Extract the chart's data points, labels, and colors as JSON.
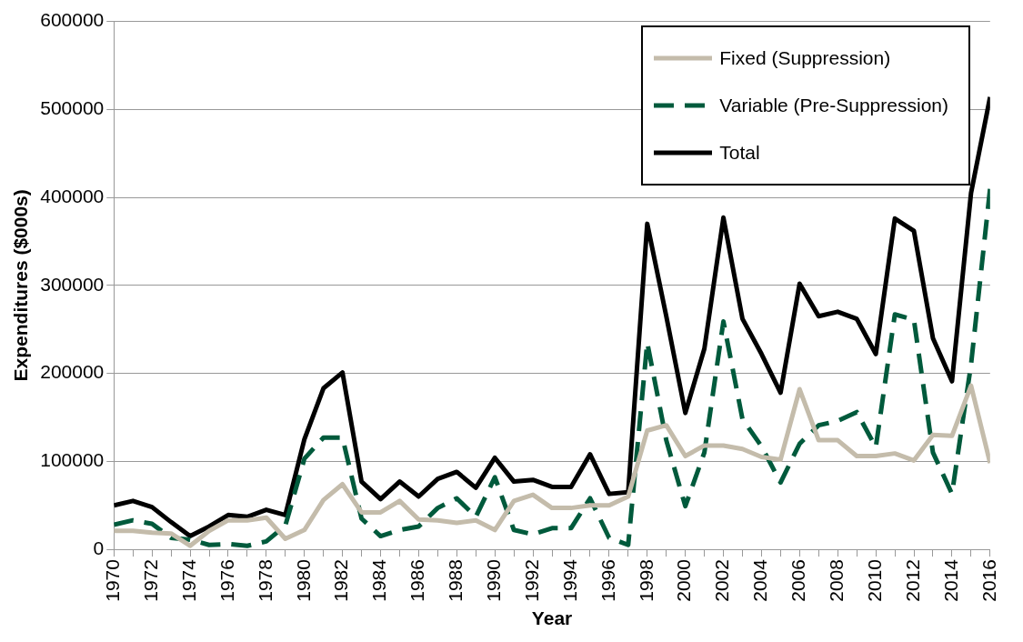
{
  "chart_data": {
    "type": "line",
    "xlabel": "Year",
    "ylabel": "Expenditures ($000s)",
    "x": [
      1970,
      1971,
      1972,
      1973,
      1974,
      1975,
      1976,
      1977,
      1978,
      1979,
      1980,
      1981,
      1982,
      1983,
      1984,
      1985,
      1986,
      1987,
      1988,
      1989,
      1990,
      1991,
      1992,
      1993,
      1994,
      1995,
      1996,
      1997,
      1998,
      1999,
      2000,
      2001,
      2002,
      2003,
      2004,
      2005,
      2006,
      2007,
      2008,
      2009,
      2010,
      2011,
      2012,
      2013,
      2014,
      2015,
      2016
    ],
    "series": [
      {
        "name": "Fixed (Suppression)",
        "color": "#c4bcab",
        "line_style": "solid",
        "values": [
          21000,
          21000,
          19000,
          18000,
          4000,
          21000,
          33000,
          33000,
          36000,
          12000,
          22000,
          56000,
          74000,
          42000,
          42000,
          55000,
          34000,
          33000,
          30000,
          33000,
          22000,
          55000,
          62000,
          47000,
          47000,
          50000,
          50000,
          60000,
          135000,
          141000,
          106000,
          118000,
          118000,
          114000,
          105000,
          102000,
          182000,
          124000,
          124000,
          106000,
          106000,
          109000,
          101000,
          130000,
          129000,
          186000,
          98000
        ]
      },
      {
        "name": "Variable (Pre-Suppression)",
        "color": "#005a3c",
        "line_style": "dashed",
        "values": [
          28000,
          33000,
          29000,
          13000,
          11000,
          5000,
          6000,
          4000,
          9000,
          27000,
          103000,
          127000,
          127000,
          35000,
          15000,
          22000,
          26000,
          47000,
          58000,
          37000,
          82000,
          22000,
          17000,
          24000,
          24000,
          58000,
          13000,
          5000,
          235000,
          124000,
          49000,
          110000,
          259000,
          148000,
          117000,
          76000,
          120000,
          141000,
          146000,
          156000,
          116000,
          267000,
          261000,
          110000,
          63000,
          210000,
          410000
        ]
      },
      {
        "name": "Total",
        "color": "#000000",
        "line_style": "solid",
        "values": [
          50000,
          55000,
          48000,
          31000,
          15000,
          26000,
          39000,
          37000,
          45000,
          39000,
          125000,
          183000,
          201000,
          77000,
          57000,
          77000,
          60000,
          80000,
          88000,
          70000,
          104000,
          77000,
          79000,
          71000,
          71000,
          108000,
          63000,
          65000,
          370000,
          265000,
          155000,
          228000,
          377000,
          262000,
          222000,
          178000,
          302000,
          265000,
          270000,
          262000,
          222000,
          376000,
          362000,
          240000,
          191000,
          405000,
          514000
        ]
      }
    ],
    "xlim": [
      1970,
      2016
    ],
    "xticks": [
      1970,
      {
        "value": 1971,
        "label": null
      },
      1972,
      {
        "value": 1973,
        "label": null
      },
      1974,
      {
        "value": 1975,
        "label": null
      },
      1976,
      {
        "value": 1977,
        "label": null
      },
      1978,
      {
        "value": 1979,
        "label": null
      },
      1980,
      {
        "value": 1981,
        "label": null
      },
      1982,
      {
        "value": 1983,
        "label": null
      },
      1984,
      {
        "value": 1985,
        "label": null
      },
      1986,
      {
        "value": 1987,
        "label": null
      },
      1988,
      {
        "value": 1989,
        "label": null
      },
      1990,
      {
        "value": 1991,
        "label": null
      },
      1992,
      {
        "value": 1993,
        "label": null
      },
      1994,
      {
        "value": 1995,
        "label": null
      },
      1996,
      {
        "value": 1997,
        "label": null
      },
      1998,
      {
        "value": 1999,
        "label": null
      },
      2000,
      {
        "value": 2001,
        "label": null
      },
      2002,
      {
        "value": 2003,
        "label": null
      },
      2004,
      {
        "value": 2005,
        "label": null
      },
      2006,
      {
        "value": 2007,
        "label": null
      },
      2008,
      {
        "value": 2009,
        "label": null
      },
      2010,
      {
        "value": 2011,
        "label": null
      },
      2012,
      {
        "value": 2013,
        "label": null
      },
      2014,
      {
        "value": 2015,
        "label": null
      },
      2016
    ],
    "ylim": [
      0,
      600000
    ],
    "yticks": [
      0,
      100000,
      200000,
      300000,
      400000,
      500000,
      600000
    ],
    "grid": "y",
    "legend": "top right",
    "marker": "none"
  }
}
